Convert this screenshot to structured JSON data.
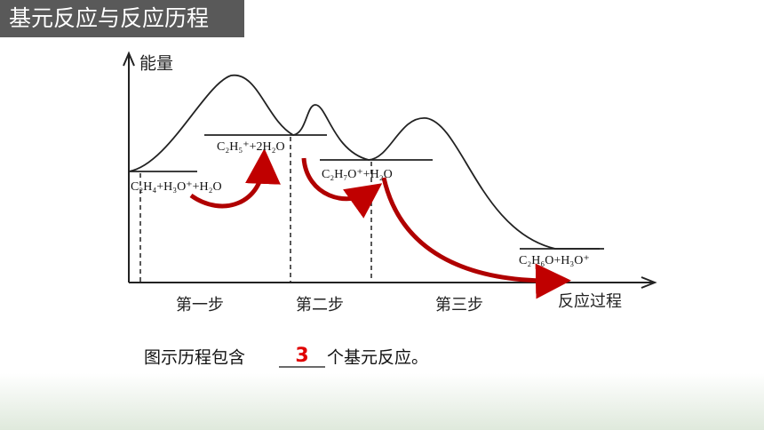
{
  "header": {
    "title": "基元反应与反应历程"
  },
  "diagram": {
    "y_axis_label": "能量",
    "x_axis_label": "反应过程",
    "steps": [
      "第一步",
      "第二步",
      "第三步"
    ],
    "species": [
      "C₂H₄+H₃O⁺+H₂O",
      "C₂H₅⁺+2H₂O",
      "C₂H₇O⁺+H₂O",
      "C₂H₆O+H₃O⁺"
    ]
  },
  "question": {
    "before": "图示历程包含",
    "answer": "3",
    "after": "个基元反应。"
  }
}
